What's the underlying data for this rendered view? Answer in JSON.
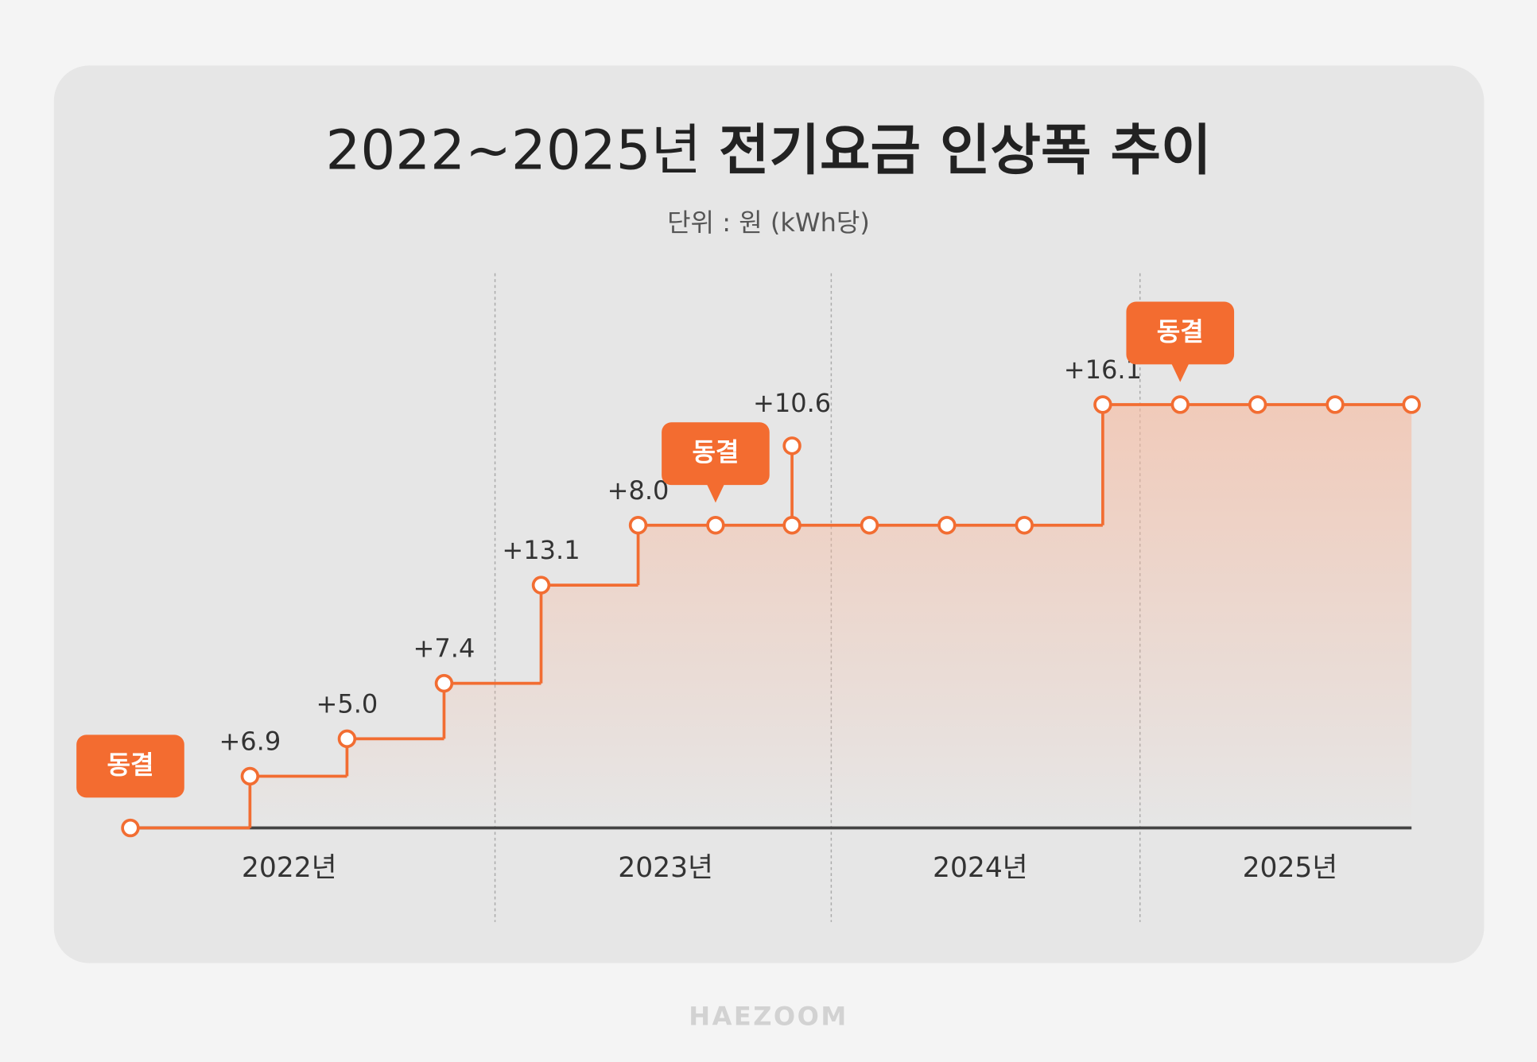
{
  "chart_data": {
    "type": "step",
    "title": "2022~2025년",
    "title_bold": "전기요금 인상폭 추이",
    "subtitle": "단위 : 원 (kWh당)",
    "categories": [
      null,
      null,
      null,
      null,
      null,
      null,
      null,
      null,
      null,
      null,
      null,
      null,
      null,
      null,
      null,
      null
    ],
    "values": [
      null,
      6.9,
      5.0,
      7.4,
      13.1,
      8.0,
      null,
      null,
      null,
      null,
      null,
      16.1,
      null,
      null,
      null,
      null
    ],
    "value_labels": [
      null,
      "+6.9",
      "+5.0",
      "+7.4",
      "+13.1",
      "+8.0",
      null,
      null,
      null,
      null,
      null,
      "+16.1",
      null,
      null,
      null,
      null
    ],
    "spike_values": [
      null,
      null,
      null,
      null,
      null,
      null,
      null,
      10.6,
      null,
      null,
      null,
      null,
      null,
      null,
      null,
      null
    ],
    "spike_labels": [
      null,
      null,
      null,
      null,
      null,
      null,
      null,
      "+10.6",
      null,
      null,
      null,
      null,
      null,
      null,
      null,
      null
    ],
    "annotations": [
      {
        "index": 0,
        "text": "동결"
      },
      {
        "index": 6,
        "text": "동결"
      },
      {
        "index": 12,
        "text": "동결"
      }
    ],
    "x_groups": [
      "2022년",
      "2023년",
      "2024년",
      "2025년"
    ],
    "color": "#f26d32"
  },
  "footer": "HAEZOOM"
}
